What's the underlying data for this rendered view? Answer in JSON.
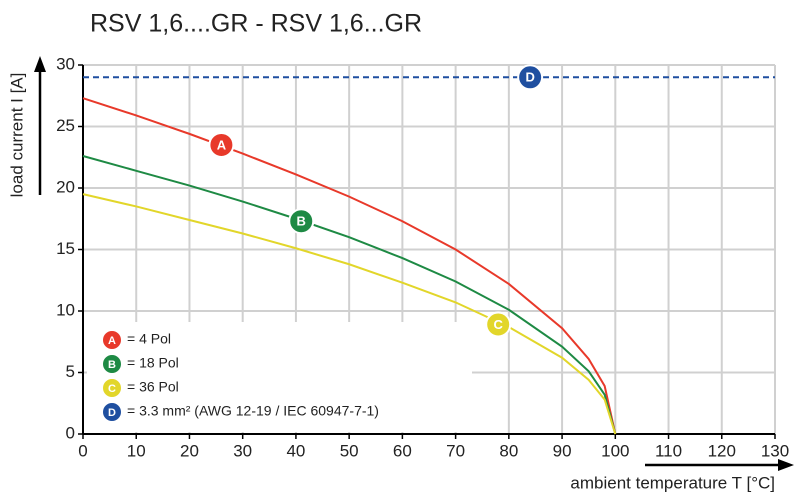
{
  "chart_data": {
    "type": "line",
    "title": "RSV 1,6....GR - RSV 1,6...GR",
    "x_label": "ambient temperature T [°C]",
    "y_label": "load current I [A]",
    "xlim": [
      0,
      130
    ],
    "xticks": [
      0,
      10,
      20,
      30,
      40,
      50,
      60,
      70,
      80,
      90,
      100,
      110,
      120,
      130
    ],
    "ylim": [
      0,
      30
    ],
    "yticks": [
      0,
      5,
      10,
      15,
      20,
      25,
      30
    ],
    "grid": true,
    "legend": "lower left",
    "series": [
      {
        "key": "A",
        "name": "= 4 Pol",
        "color": "#e8392a",
        "dashed": false,
        "x": [
          0,
          10,
          20,
          30,
          40,
          50,
          60,
          70,
          80,
          90,
          95,
          98,
          100
        ],
        "values": [
          27.3,
          25.9,
          24.4,
          22.8,
          21.1,
          19.3,
          17.3,
          15.0,
          12.2,
          8.6,
          6.1,
          3.9,
          0
        ],
        "marker": [
          26,
          23.5
        ]
      },
      {
        "key": "B",
        "name": "= 18 Pol",
        "color": "#1e8a44",
        "dashed": false,
        "x": [
          0,
          10,
          20,
          30,
          40,
          50,
          60,
          70,
          80,
          90,
          95,
          98,
          100
        ],
        "values": [
          22.6,
          21.4,
          20.2,
          18.9,
          17.5,
          16.0,
          14.3,
          12.4,
          10.1,
          7.1,
          5.1,
          3.2,
          0
        ],
        "marker": [
          41,
          17.3
        ]
      },
      {
        "key": "C",
        "name": "= 36 Pol",
        "color": "#e2d62a",
        "dashed": false,
        "x": [
          0,
          10,
          20,
          30,
          40,
          50,
          60,
          70,
          80,
          90,
          95,
          98,
          100
        ],
        "values": [
          19.5,
          18.5,
          17.4,
          16.3,
          15.1,
          13.8,
          12.3,
          10.7,
          8.7,
          6.2,
          4.4,
          2.8,
          0
        ],
        "marker": [
          78,
          8.9
        ]
      },
      {
        "key": "D",
        "name": "= 3.3 mm² (AWG 12-19 / IEC 60947-7-1)",
        "color": "#1f4fa0",
        "dashed": true,
        "x": [
          0,
          130
        ],
        "values": [
          29,
          29
        ],
        "marker": [
          84,
          29
        ]
      }
    ]
  }
}
